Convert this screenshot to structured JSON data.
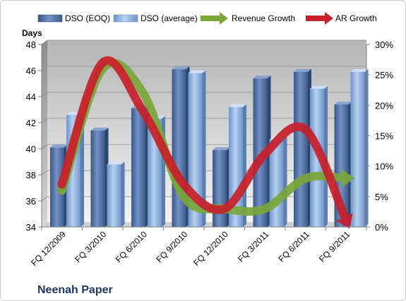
{
  "chart_data": {
    "type": "bar",
    "title": "Neenah Paper",
    "ylabel": "Days",
    "ylim": [
      34,
      48
    ],
    "y_ticks": [
      34,
      36,
      38,
      40,
      42,
      44,
      46,
      48
    ],
    "y2lim": [
      0,
      30
    ],
    "y2_ticks": [
      "0%",
      "5%",
      "10%",
      "15%",
      "20%",
      "25%",
      "30%"
    ],
    "categories": [
      "FQ 12/2009",
      "FQ 3/2010",
      "FQ 6/2010",
      "FQ 9/2010",
      "FQ 12/2010",
      "FQ 3/2011",
      "FQ 6/2011",
      "FQ 9/2011"
    ],
    "grid": true,
    "legend_position": "top",
    "series": [
      {
        "name": "DSO (EOQ)",
        "type": "bar",
        "axis": "left",
        "color": "#4f6fa6",
        "values": [
          40.1,
          41.4,
          43.1,
          46.1,
          39.9,
          45.4,
          45.9,
          43.4
        ]
      },
      {
        "name": "DSO (average)",
        "type": "bar",
        "axis": "left",
        "color": "#8fb3e0",
        "values": [
          42.6,
          38.8,
          42.3,
          45.8,
          43.2,
          40.7,
          44.6,
          45.9
        ]
      },
      {
        "name": "Revenue Growth",
        "type": "line",
        "axis": "right",
        "color": "#7aa63a",
        "values": [
          6,
          26,
          22,
          5,
          3,
          3,
          8,
          8
        ]
      },
      {
        "name": "AR Growth",
        "type": "line",
        "axis": "right",
        "color": "#c8202a",
        "values": [
          7,
          27,
          19,
          7,
          3,
          12,
          16,
          1
        ]
      }
    ]
  }
}
